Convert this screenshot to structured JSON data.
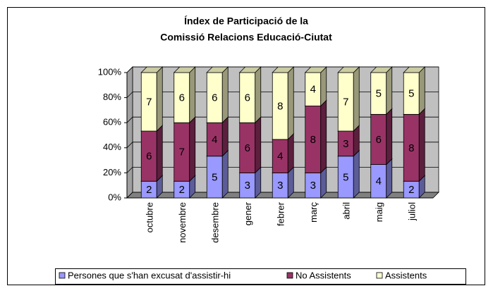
{
  "chart_data": {
    "type": "bar",
    "percent_stacked": true,
    "title": [
      "Índex de Participació de la",
      "Comissió Relacions Educació-Ciutat"
    ],
    "categories": [
      "octubre",
      "novembre",
      "desembre",
      "gener",
      "febrer",
      "març",
      "abril",
      "maig",
      "juliol"
    ],
    "series": [
      {
        "name": "Persones que s'han excusat d'assistir-hi",
        "color": "#9999ff",
        "values": [
          2,
          2,
          5,
          3,
          3,
          3,
          5,
          4,
          2
        ]
      },
      {
        "name": "No Assistents",
        "color": "#993366",
        "values": [
          6,
          7,
          4,
          6,
          4,
          8,
          3,
          6,
          8
        ]
      },
      {
        "name": "Assistents",
        "color": "#ffffcc",
        "values": [
          7,
          6,
          6,
          6,
          8,
          4,
          7,
          5,
          5
        ]
      }
    ],
    "ylim": [
      0,
      100
    ],
    "yticks": [
      {
        "value": 0,
        "label": "0%"
      },
      {
        "value": 20,
        "label": "20%"
      },
      {
        "value": 40,
        "label": "40%"
      },
      {
        "value": 60,
        "label": "60%"
      },
      {
        "value": 80,
        "label": "80%"
      },
      {
        "value": 100,
        "label": "100%"
      }
    ],
    "grid": true,
    "legend": "bottom"
  }
}
